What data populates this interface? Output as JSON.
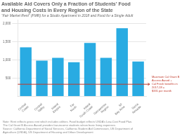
{
  "chart_data": {
    "type": "bar",
    "title": [
      "Available Aid Covers Only a Fraction of Students’ Food",
      "and Housing Costs in Every Region of the State"
    ],
    "subtitle": "“Fair Market Rent” (FMR) for a Studio Apartment in 2018 and Food for a Single Adult",
    "categories": [
      "Central\nCoast",
      "Central\nValley",
      "Inland\nEmpire",
      "Far\nNorth",
      "Inland\nSouth Coast",
      "Sacramento\nRegion",
      "SF\nBay Area",
      "Sierra\nNevada"
    ],
    "values": [
      1350,
      980,
      1060,
      940,
      1470,
      1060,
      1880,
      960
    ],
    "color": "#29ABE2",
    "ylim": [
      0,
      2100
    ],
    "yticks": [
      500,
      {
        "value": 1000,
        "label": "1,000"
      },
      {
        "value": 1500,
        "label": "1,500"
      },
      {
        "value": 2000,
        "label": "2,000"
      }
    ],
    "grid": true,
    "annotations": [
      {
        "type": "hline",
        "y": 330,
        "color": "#C0392B",
        "text": [
          "Maximum Cal Grant B Access Award +",
          "Cal Fresh benefits in 2017-18 =",
          "$331 per month"
        ]
      }
    ],
    "note": "Note: Rent reflects gross rent which includes utilities. Food budget reflects USDA’s Low-Cost Food Plan.\nThe Cal Grant B Access Award provides low-income students w/non basic living expenses.\nSource: California Department of Social Services, California Student Aid Commission, US Department of\nAgriculture (USDA), US Department of Housing and Urban Development"
  }
}
